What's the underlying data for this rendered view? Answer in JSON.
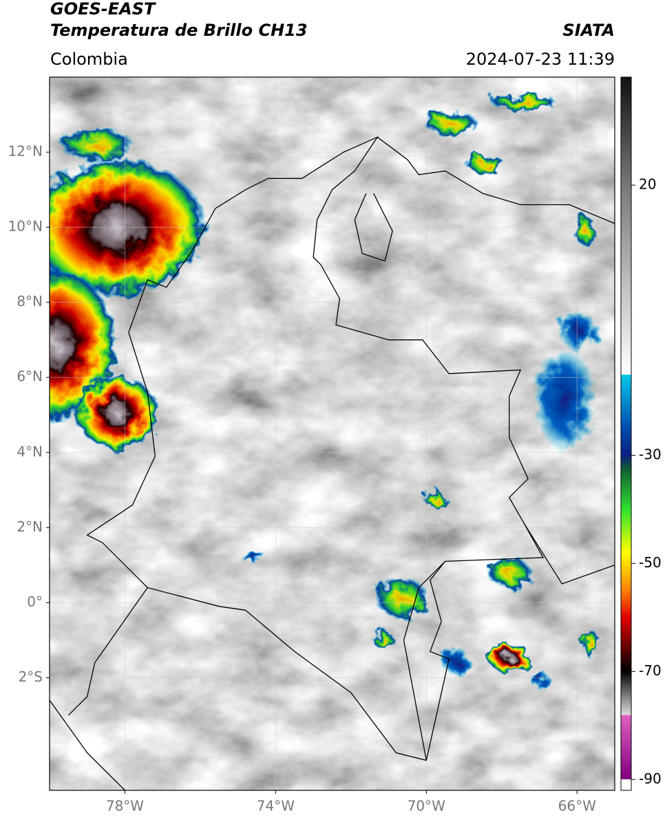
{
  "header": {
    "title": "GOES-EAST",
    "subtitle": "Temperatura de Brillo CH13",
    "brand": "SIATA",
    "region": "Colombia",
    "datetime": "2024-07-23 11:39"
  },
  "map": {
    "xlim": [
      -80,
      -65
    ],
    "ylim": [
      -5,
      14
    ],
    "xticks": [
      {
        "value": -78,
        "label": "78°W"
      },
      {
        "value": -74,
        "label": "74°W"
      },
      {
        "value": -70,
        "label": "70°W"
      },
      {
        "value": -66,
        "label": "66°W"
      }
    ],
    "yticks": [
      {
        "value": 12,
        "label": "12°N"
      },
      {
        "value": 10,
        "label": "10°N"
      },
      {
        "value": 8,
        "label": "8°N"
      },
      {
        "value": 6,
        "label": "6°N"
      },
      {
        "value": 4,
        "label": "4°N"
      },
      {
        "value": 2,
        "label": "2°N"
      },
      {
        "value": 0,
        "label": "0°"
      },
      {
        "value": -2,
        "label": "2°S"
      }
    ],
    "grid": true
  },
  "colorbar": {
    "lim": [
      -92,
      40
    ],
    "ticks": [
      20,
      -30,
      -50,
      -70,
      -90
    ]
  }
}
